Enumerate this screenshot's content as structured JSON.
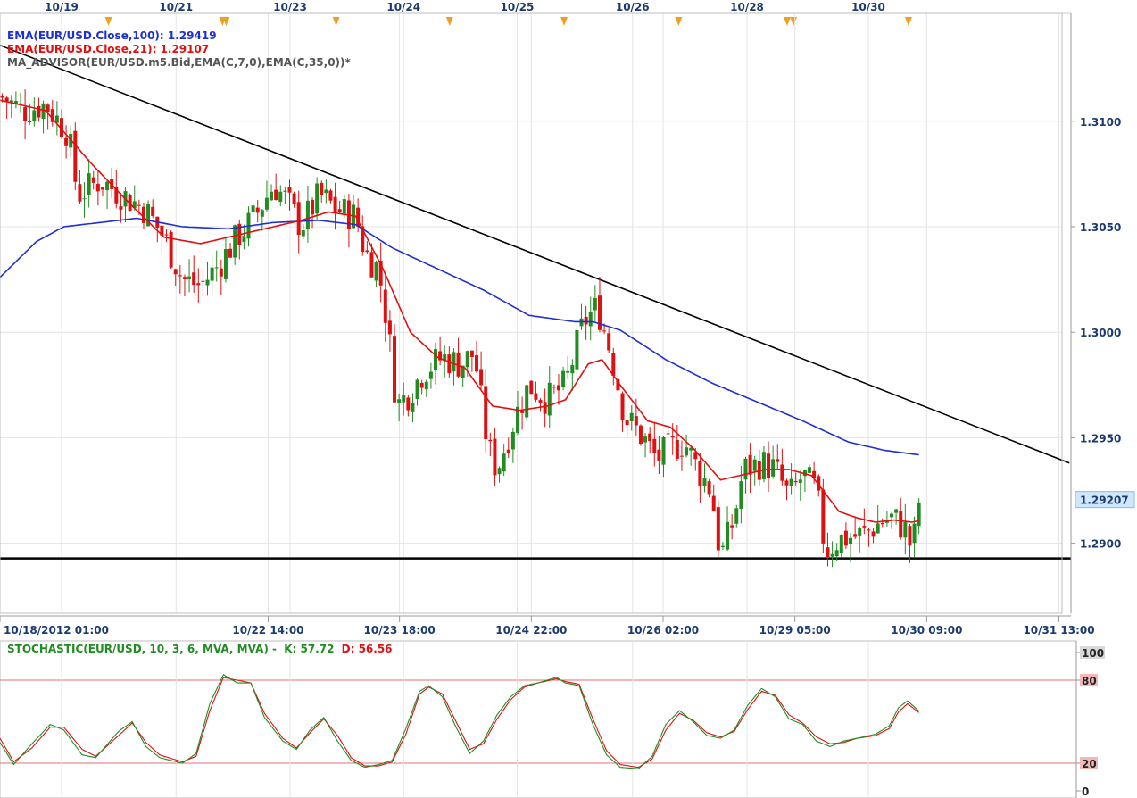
{
  "colors": {
    "ema100": "#1f2fd0",
    "ema21": "#e01010",
    "advisor": "#555555",
    "bull": "#228b22",
    "bear": "#dd1111",
    "stoch_k": "#228b22",
    "stoch_d": "#dd1111",
    "grid": "#e4e4e4",
    "event_marker": "#f0a020",
    "price_box_bg": "#cfe7fb"
  },
  "legend": {
    "ema100": "EMA(EUR/USD.Close,100): 1.29419",
    "ema21": "EMA(EUR/USD.Close,21): 1.29107",
    "advisor": "MA_ADVISOR(EUR/USD.m5.Bid,EMA(C,7,0),EMA(C,35,0))*"
  },
  "stoch_legend": {
    "name": "STOCHASTIC(EUR/USD, 10, 3, 6, MVA, MVA) -",
    "k": "K: 57.72",
    "d": "D: 56.56"
  },
  "top_dates": [
    {
      "label": "10/19",
      "t": 13.5
    },
    {
      "label": "10/21",
      "t": 38.6
    },
    {
      "label": "10/23",
      "t": 63.6
    },
    {
      "label": "10/24",
      "t": 88.5
    },
    {
      "label": "10/25",
      "t": 113.4
    },
    {
      "label": "10/26",
      "t": 138.7
    },
    {
      "label": "10/28",
      "t": 163.8
    },
    {
      "label": "10/30",
      "t": 190.4
    }
  ],
  "event_markers": [
    23.8,
    48.8,
    49.6,
    73.7,
    98.6,
    123.7,
    148.8,
    172.6,
    174.0,
    199.2
  ],
  "chart_data": [
    {
      "type": "candlestick",
      "x_labels": [
        {
          "label": "10/18/2012 01:00",
          "t": 0
        },
        {
          "label": "10/22 14:00",
          "t": 58.8
        },
        {
          "label": "10/23 18:00",
          "t": 87.6
        },
        {
          "label": "10/24 22:00",
          "t": 116.5
        },
        {
          "label": "10/26 02:00",
          "t": 145.4
        },
        {
          "label": "10/29 05:00",
          "t": 174.3
        },
        {
          "label": "10/30 09:00",
          "t": 203.2
        },
        {
          "label": "10/31 13:00",
          "t": 232.2
        }
      ],
      "y_ticks": [
        1.31,
        1.305,
        1.3,
        1.295,
        1.29
      ],
      "y_tick_labels": [
        "1.3100",
        "1.3050",
        "1.3000",
        "1.2950",
        "1.2900"
      ],
      "ylim": [
        1.28735,
        1.31355
      ],
      "xlim": [
        0,
        234.8
      ],
      "last_price": 1.29207,
      "last_price_label": "1.29207",
      "close_anchors": [
        [
          0,
          1.3112
        ],
        [
          5,
          1.3105
        ],
        [
          10,
          1.3108
        ],
        [
          15,
          1.3094
        ],
        [
          17,
          1.3065
        ],
        [
          22,
          1.3072
        ],
        [
          27,
          1.3065
        ],
        [
          32,
          1.3058
        ],
        [
          36,
          1.3045
        ],
        [
          40,
          1.3025
        ],
        [
          44,
          1.3022
        ],
        [
          48,
          1.3032
        ],
        [
          52,
          1.3045
        ],
        [
          56,
          1.3055
        ],
        [
          60,
          1.307
        ],
        [
          63,
          1.3062
        ],
        [
          66,
          1.305
        ],
        [
          70,
          1.3065
        ],
        [
          74,
          1.3058
        ],
        [
          78,
          1.3055
        ],
        [
          80,
          1.3038
        ],
        [
          83,
          1.303
        ],
        [
          85,
          1.3003
        ],
        [
          87,
          1.2965
        ],
        [
          90,
          1.2972
        ],
        [
          93,
          1.2982
        ],
        [
          97,
          1.2988
        ],
        [
          101,
          1.2985
        ],
        [
          104,
          1.299
        ],
        [
          107,
          1.2945
        ],
        [
          109,
          1.2935
        ],
        [
          113,
          1.296
        ],
        [
          116,
          1.2975
        ],
        [
          120,
          1.2968
        ],
        [
          124,
          1.2975
        ],
        [
          128,
          1.3005
        ],
        [
          131,
          1.3012
        ],
        [
          134,
          1.299
        ],
        [
          137,
          1.296
        ],
        [
          141,
          1.295
        ],
        [
          144,
          1.294
        ],
        [
          147,
          1.2945
        ],
        [
          150,
          1.2948
        ],
        [
          153,
          1.2935
        ],
        [
          156,
          1.2925
        ],
        [
          158,
          1.2893
        ],
        [
          161,
          1.2912
        ],
        [
          163,
          1.2935
        ],
        [
          167,
          1.2938
        ],
        [
          170,
          1.2935
        ],
        [
          173,
          1.2922
        ],
        [
          176,
          1.2932
        ],
        [
          179,
          1.2925
        ],
        [
          181,
          1.2896
        ],
        [
          184,
          1.2902
        ],
        [
          187,
          1.2903
        ],
        [
          190,
          1.2905
        ],
        [
          193,
          1.291
        ],
        [
          196,
          1.2912
        ],
        [
          199,
          1.2905
        ],
        [
          200,
          1.2895
        ],
        [
          201.5,
          1.292
        ]
      ],
      "ema21_anchors": [
        [
          0,
          1.311
        ],
        [
          10,
          1.3105
        ],
        [
          20,
          1.308
        ],
        [
          28,
          1.3062
        ],
        [
          36,
          1.3045
        ],
        [
          44,
          1.3042
        ],
        [
          52,
          1.3046
        ],
        [
          60,
          1.305
        ],
        [
          66,
          1.3053
        ],
        [
          72,
          1.3057
        ],
        [
          78,
          1.3055
        ],
        [
          84,
          1.303
        ],
        [
          90,
          1.3
        ],
        [
          96,
          1.2988
        ],
        [
          102,
          1.2983
        ],
        [
          108,
          1.2965
        ],
        [
          114,
          1.2963
        ],
        [
          120,
          1.2965
        ],
        [
          124,
          1.2968
        ],
        [
          129,
          1.2985
        ],
        [
          132,
          1.2987
        ],
        [
          136,
          1.2975
        ],
        [
          142,
          1.2958
        ],
        [
          147,
          1.2955
        ],
        [
          152,
          1.2945
        ],
        [
          158,
          1.293
        ],
        [
          162,
          1.2932
        ],
        [
          168,
          1.2935
        ],
        [
          173,
          1.2935
        ],
        [
          178,
          1.2932
        ],
        [
          184,
          1.2915
        ],
        [
          188,
          1.2912
        ],
        [
          192,
          1.291
        ],
        [
          196,
          1.2911
        ],
        [
          200,
          1.291
        ],
        [
          201.5,
          1.29107
        ]
      ],
      "ema100_anchors": [
        [
          0,
          1.3026
        ],
        [
          8,
          1.3043
        ],
        [
          14,
          1.305
        ],
        [
          22,
          1.3052
        ],
        [
          30,
          1.3054
        ],
        [
          40,
          1.305
        ],
        [
          50,
          1.3049
        ],
        [
          60,
          1.3052
        ],
        [
          70,
          1.3053
        ],
        [
          78,
          1.3051
        ],
        [
          86,
          1.304
        ],
        [
          96,
          1.303
        ],
        [
          106,
          1.302
        ],
        [
          116,
          1.3008
        ],
        [
          126,
          1.3005
        ],
        [
          130,
          1.3005
        ],
        [
          136,
          1.3001
        ],
        [
          146,
          1.2987
        ],
        [
          156,
          1.2976
        ],
        [
          166,
          1.2967
        ],
        [
          176,
          1.2958
        ],
        [
          186,
          1.2948
        ],
        [
          194,
          1.2944
        ],
        [
          201.5,
          1.29419
        ]
      ],
      "trendlines": [
        {
          "name": "resistance",
          "from": [
            0,
            1.3136
          ],
          "to": [
            234.5,
            1.2938
          ]
        },
        {
          "name": "support",
          "from": [
            0,
            1.28928
          ],
          "to": [
            234.8,
            1.28928
          ]
        }
      ]
    },
    {
      "type": "line",
      "name": "stochastic",
      "ylim": [
        0,
        100
      ],
      "levels": [
        20,
        80
      ],
      "y_tick_labels": [
        "100",
        "80",
        "20",
        "0"
      ],
      "k_anchors": [
        [
          0,
          35
        ],
        [
          3,
          19
        ],
        [
          7,
          34
        ],
        [
          11,
          48
        ],
        [
          14,
          44
        ],
        [
          18,
          26
        ],
        [
          21,
          24
        ],
        [
          26,
          43
        ],
        [
          29,
          50
        ],
        [
          32,
          32
        ],
        [
          35,
          24
        ],
        [
          40,
          20
        ],
        [
          43,
          27
        ],
        [
          46,
          63
        ],
        [
          49,
          84
        ],
        [
          52,
          78
        ],
        [
          55,
          78
        ],
        [
          58,
          53
        ],
        [
          62,
          36
        ],
        [
          65,
          30
        ],
        [
          68,
          44
        ],
        [
          71,
          53
        ],
        [
          74,
          36
        ],
        [
          77,
          22
        ],
        [
          80,
          17
        ],
        [
          83,
          19
        ],
        [
          86,
          22
        ],
        [
          89,
          45
        ],
        [
          92,
          72
        ],
        [
          94,
          76
        ],
        [
          97,
          68
        ],
        [
          100,
          46
        ],
        [
          103,
          27
        ],
        [
          106,
          36
        ],
        [
          109,
          55
        ],
        [
          112,
          68
        ],
        [
          115,
          76
        ],
        [
          118,
          78
        ],
        [
          122,
          82
        ],
        [
          124,
          78
        ],
        [
          127,
          76
        ],
        [
          130,
          48
        ],
        [
          133,
          26
        ],
        [
          136,
          17
        ],
        [
          140,
          16
        ],
        [
          143,
          25
        ],
        [
          146,
          48
        ],
        [
          149,
          58
        ],
        [
          152,
          50
        ],
        [
          155,
          40
        ],
        [
          158,
          38
        ],
        [
          161,
          44
        ],
        [
          164,
          62
        ],
        [
          167,
          74
        ],
        [
          170,
          68
        ],
        [
          173,
          52
        ],
        [
          176,
          48
        ],
        [
          179,
          36
        ],
        [
          182,
          32
        ],
        [
          185,
          36
        ],
        [
          188,
          38
        ],
        [
          192,
          41
        ],
        [
          195,
          47
        ],
        [
          197,
          60
        ],
        [
          199,
          65
        ],
        [
          201.5,
          57.72
        ]
      ],
      "d_anchors": [
        [
          0,
          38
        ],
        [
          3,
          21
        ],
        [
          7,
          31
        ],
        [
          11,
          46
        ],
        [
          14,
          46
        ],
        [
          18,
          30
        ],
        [
          21,
          25
        ],
        [
          26,
          40
        ],
        [
          29,
          49
        ],
        [
          32,
          35
        ],
        [
          35,
          26
        ],
        [
          40,
          21
        ],
        [
          43,
          25
        ],
        [
          46,
          58
        ],
        [
          49,
          82
        ],
        [
          52,
          80
        ],
        [
          55,
          78
        ],
        [
          58,
          56
        ],
        [
          62,
          38
        ],
        [
          65,
          31
        ],
        [
          68,
          42
        ],
        [
          71,
          52
        ],
        [
          74,
          40
        ],
        [
          77,
          24
        ],
        [
          80,
          18
        ],
        [
          83,
          18
        ],
        [
          86,
          21
        ],
        [
          89,
          41
        ],
        [
          92,
          70
        ],
        [
          94,
          75
        ],
        [
          97,
          70
        ],
        [
          100,
          50
        ],
        [
          103,
          30
        ],
        [
          106,
          34
        ],
        [
          109,
          52
        ],
        [
          112,
          66
        ],
        [
          115,
          75
        ],
        [
          118,
          78
        ],
        [
          122,
          81
        ],
        [
          124,
          79
        ],
        [
          127,
          77
        ],
        [
          130,
          52
        ],
        [
          133,
          29
        ],
        [
          136,
          19
        ],
        [
          140,
          17
        ],
        [
          143,
          23
        ],
        [
          146,
          44
        ],
        [
          149,
          56
        ],
        [
          152,
          51
        ],
        [
          155,
          42
        ],
        [
          158,
          39
        ],
        [
          161,
          43
        ],
        [
          164,
          59
        ],
        [
          167,
          72
        ],
        [
          170,
          69
        ],
        [
          173,
          55
        ],
        [
          176,
          49
        ],
        [
          179,
          39
        ],
        [
          182,
          34
        ],
        [
          185,
          35
        ],
        [
          188,
          38
        ],
        [
          192,
          40
        ],
        [
          195,
          45
        ],
        [
          197,
          57
        ],
        [
          199,
          63
        ],
        [
          201.5,
          56.56
        ]
      ]
    }
  ]
}
